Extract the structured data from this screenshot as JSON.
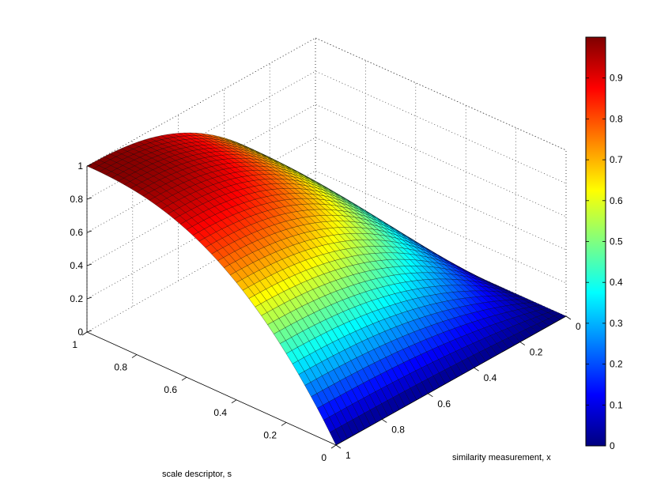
{
  "chart_data": {
    "type": "surface",
    "title": "",
    "xlabel": "similarity measurement, x",
    "ylabel": "scale descriptor, s",
    "zlabel": "",
    "xlim": [
      0,
      1
    ],
    "ylim": [
      0,
      1
    ],
    "zlim": [
      0,
      1
    ],
    "x_ticks": [
      "0",
      "0.2",
      "0.4",
      "0.6",
      "0.8",
      "1"
    ],
    "y_ticks": [
      "0",
      "0.2",
      "0.4",
      "0.6",
      "0.8",
      "1"
    ],
    "z_ticks": [
      "0",
      "0.2",
      "0.4",
      "0.6",
      "0.8",
      "1"
    ],
    "grid": true,
    "colormap": "jet",
    "colorbar": {
      "placement": "right",
      "range": [
        0,
        1
      ],
      "ticks": [
        "0",
        "0.1",
        "0.2",
        "0.3",
        "0.4",
        "0.5",
        "0.6",
        "0.7",
        "0.8",
        "0.9"
      ]
    },
    "grid_size": 40,
    "surface_samples": {
      "x": [
        0,
        0.25,
        0.5,
        0.75,
        1
      ],
      "s": [
        0,
        0.25,
        0.5,
        0.75,
        1
      ],
      "z": [
        [
          0,
          0,
          0,
          0,
          0
        ],
        [
          0,
          0.44,
          0.68,
          0.84,
          1
        ],
        [
          0,
          0.68,
          0.9,
          0.97,
          1
        ],
        [
          0,
          0.84,
          0.97,
          0.99,
          1
        ],
        [
          0,
          1,
          1,
          1,
          1
        ]
      ]
    }
  }
}
